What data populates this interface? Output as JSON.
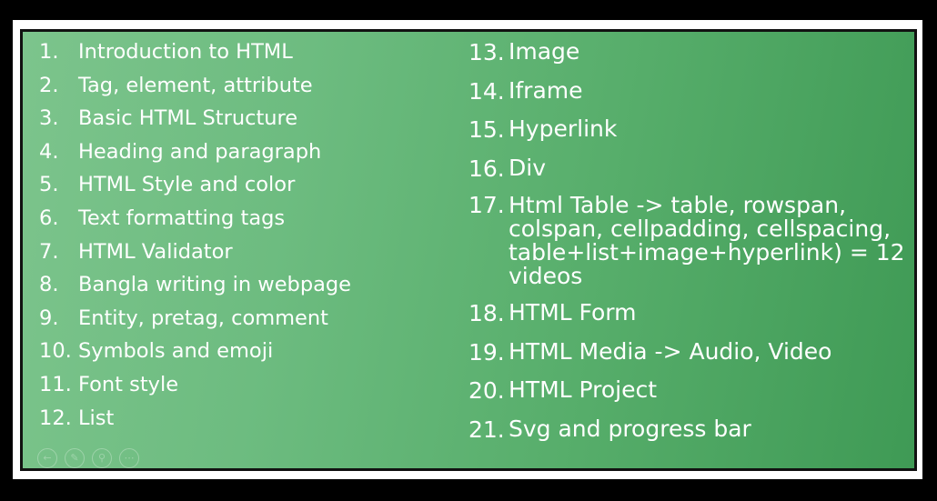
{
  "left_list": [
    {
      "num": "1.",
      "text": "Introduction to HTML"
    },
    {
      "num": "2.",
      "text": "Tag, element, attribute"
    },
    {
      "num": "3.",
      "text": "Basic HTML Structure"
    },
    {
      "num": "4.",
      "text": "Heading and paragraph"
    },
    {
      "num": "5.",
      "text": "HTML Style and color"
    },
    {
      "num": "6.",
      "text": "Text formatting tags"
    },
    {
      "num": "7.",
      "text": "HTML Validator"
    },
    {
      "num": "8.",
      "text": "Bangla writing in webpage"
    },
    {
      "num": "9.",
      "text": "Entity, pretag, comment"
    },
    {
      "num": "10.",
      "text": "Symbols and emoji"
    },
    {
      "num": "11.",
      "text": "Font style"
    },
    {
      "num": "12.",
      "text": "List"
    }
  ],
  "right_list": [
    {
      "num": "13.",
      "text": "Image"
    },
    {
      "num": "14.",
      "text": "Iframe"
    },
    {
      "num": "15.",
      "text": "Hyperlink"
    },
    {
      "num": "16.",
      "text": "Div"
    },
    {
      "num": "17.",
      "text": "Html Table -> table, rowspan, colspan, cellpadding, cellspacing, table+list+image+hyperlink) = 12 videos"
    },
    {
      "num": "18.",
      "text": "HTML Form"
    },
    {
      "num": "19.",
      "text": "HTML Media -> Audio, Video"
    },
    {
      "num": "20.",
      "text": "HTML Project"
    },
    {
      "num": "21.",
      "text": "Svg and progress bar"
    }
  ],
  "controls": {
    "prev_icon": "back-arrow-icon",
    "pen_icon": "pen-icon",
    "zoom_icon": "magnifier-icon",
    "more_icon": "more-icon"
  },
  "colors": {
    "slide_gradient_start": "#7cc48c",
    "slide_gradient_end": "#3f9a55",
    "text": "#ffffff"
  }
}
